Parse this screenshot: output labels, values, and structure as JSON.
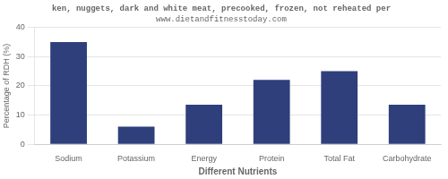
{
  "chart_data": {
    "type": "bar",
    "title": "ken, nuggets, dark and white meat, precooked, frozen, not reheated per",
    "subtitle": "www.dietandfitnesstoday.com",
    "categories": [
      "Sodium",
      "Potassium",
      "Energy",
      "Protein",
      "Total Fat",
      "Carbohydrate"
    ],
    "values": [
      35,
      6,
      13.5,
      22,
      25,
      13.5
    ],
    "color": "#2e3f7c",
    "xlabel": "Different Nutrients",
    "ylabel": "Percentage of RDH (%)",
    "ylim": [
      0,
      40
    ],
    "yticks": [
      0,
      10,
      20,
      30,
      40
    ],
    "grid": true
  }
}
